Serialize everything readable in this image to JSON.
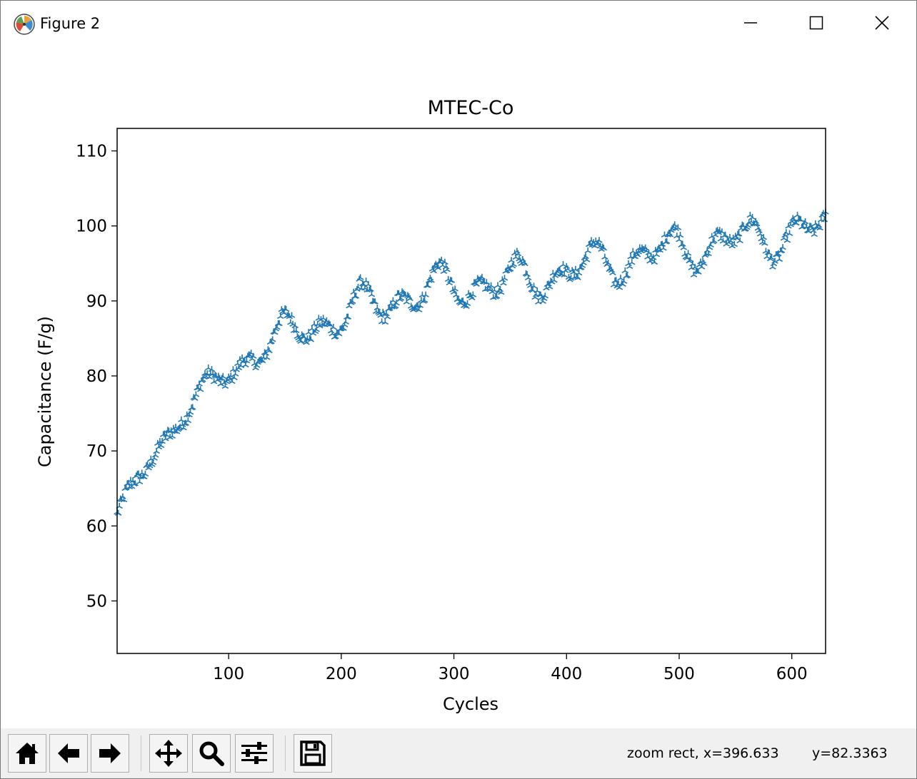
{
  "window": {
    "title": "Figure 2"
  },
  "toolbar": {
    "buttons": [
      {
        "name": "home",
        "icon": "home-icon"
      },
      {
        "name": "back",
        "icon": "arrow-left-icon"
      },
      {
        "name": "forward",
        "icon": "arrow-right-icon"
      },
      {
        "name": "pan",
        "icon": "move-icon"
      },
      {
        "name": "zoom",
        "icon": "magnifier-icon"
      },
      {
        "name": "configure",
        "icon": "sliders-icon"
      },
      {
        "name": "save",
        "icon": "floppy-icon"
      }
    ],
    "status_mode": "zoom rect, x=396.633",
    "status_y": "y=82.3363"
  },
  "chart_data": {
    "type": "scatter",
    "title": "MTEC-Co",
    "xlabel": "Cycles",
    "ylabel": "Capacitance (F/g)",
    "xlim": [
      1,
      630
    ],
    "ylim": [
      43,
      113
    ],
    "xticks": [
      100,
      200,
      300,
      400,
      500,
      600
    ],
    "yticks": [
      50,
      60,
      70,
      80,
      90,
      100,
      110
    ],
    "marker": "tri_up",
    "color": "#1f77b4",
    "grid": false,
    "n_points": 630,
    "trend_samples": [
      {
        "x": 1,
        "y": 61.5
      },
      {
        "x": 10,
        "y": 64.5
      },
      {
        "x": 25,
        "y": 67
      },
      {
        "x": 40,
        "y": 71
      },
      {
        "x": 60,
        "y": 75
      },
      {
        "x": 80,
        "y": 78.5
      },
      {
        "x": 100,
        "y": 80
      },
      {
        "x": 120,
        "y": 83
      },
      {
        "x": 150,
        "y": 85.5
      },
      {
        "x": 200,
        "y": 88
      },
      {
        "x": 250,
        "y": 90.5
      },
      {
        "x": 300,
        "y": 92
      },
      {
        "x": 350,
        "y": 92.5
      },
      {
        "x": 400,
        "y": 94
      },
      {
        "x": 450,
        "y": 95.5
      },
      {
        "x": 500,
        "y": 97
      },
      {
        "x": 550,
        "y": 98
      },
      {
        "x": 600,
        "y": 99
      },
      {
        "x": 630,
        "y": 99.5
      }
    ],
    "spread": 3.5
  }
}
